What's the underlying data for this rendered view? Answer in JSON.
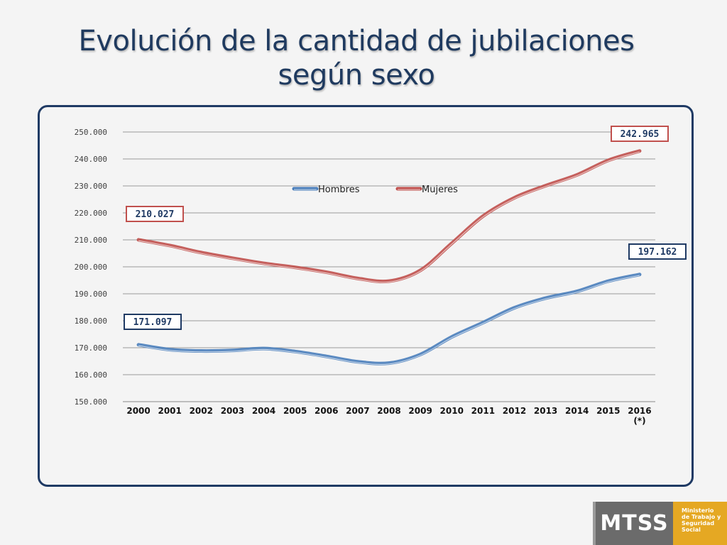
{
  "slide": {
    "title_line1": "Evolución de la cantidad de jubilaciones",
    "title_line2": "según sexo"
  },
  "logo": {
    "mark": "MTSS",
    "text_lines": [
      "Ministerio",
      "de Trabajo y",
      "Seguridad",
      "Social"
    ]
  },
  "chart_data": {
    "type": "line",
    "title": "",
    "xlabel": "",
    "ylabel": "",
    "categories": [
      "2000",
      "2001",
      "2002",
      "2003",
      "2004",
      "2005",
      "2006",
      "2007",
      "2008",
      "2009",
      "2010",
      "2011",
      "2012",
      "2013",
      "2014",
      "2015",
      "2016"
    ],
    "x_tick_labels": [
      "2000",
      "2001",
      "2002",
      "2003",
      "2004",
      "2005",
      "2006",
      "2007",
      "2008",
      "2009",
      "2010",
      "2011",
      "2012",
      "2013",
      "2014",
      "2015",
      "2016\n(*)"
    ],
    "y_ticks": [
      150000,
      160000,
      170000,
      180000,
      190000,
      200000,
      210000,
      220000,
      230000,
      240000,
      250000
    ],
    "y_tick_labels": [
      "150.000",
      "160.000",
      "170.000",
      "180.000",
      "190.000",
      "200.000",
      "210.000",
      "220.000",
      "230.000",
      "240.000",
      "250.000"
    ],
    "ylim": [
      150000,
      250000
    ],
    "grid": "horizontal",
    "legend_position": "top-center",
    "series": [
      {
        "name": "Hombres",
        "color": "#4a7ebb",
        "values": [
          171097,
          169300,
          168800,
          169000,
          169700,
          168600,
          166800,
          164800,
          164300,
          167500,
          174000,
          179300,
          184800,
          188400,
          190900,
          194700,
          197162
        ]
      },
      {
        "name": "Mujeres",
        "color": "#c0504d",
        "values": [
          210027,
          207900,
          205300,
          203200,
          201300,
          199800,
          198000,
          195700,
          194700,
          198700,
          208700,
          218800,
          225600,
          230100,
          234100,
          239500,
          242965
        ]
      }
    ],
    "callouts": [
      {
        "series": "Mujeres",
        "index": 0,
        "label": "210.027",
        "border": "#c0504d"
      },
      {
        "series": "Mujeres",
        "index": 16,
        "label": "242.965",
        "border": "#c0504d"
      },
      {
        "series": "Hombres",
        "index": 0,
        "label": "171.097",
        "border": "#1f3a64"
      },
      {
        "series": "Hombres",
        "index": 16,
        "label": "197.162",
        "border": "#1f3a64"
      }
    ]
  }
}
